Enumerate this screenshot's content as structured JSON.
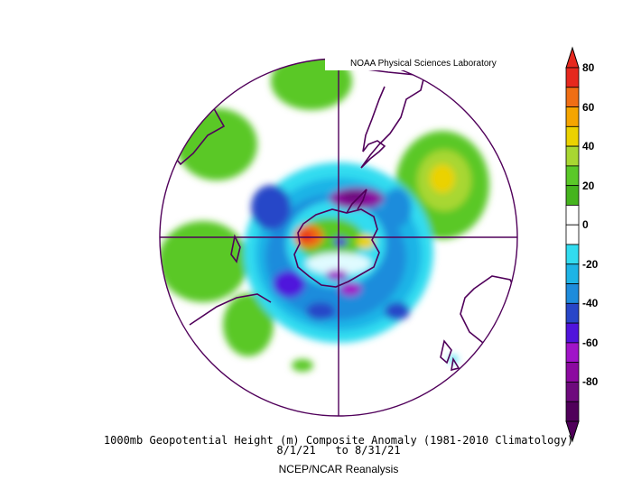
{
  "credit": "NOAA Physical Sciences Laboratory",
  "caption": {
    "title": "1000mb Geopotential Height (m) Composite Anomaly (1981-2010 Climatology)",
    "dates": "8/1/21   to 8/31/21",
    "source": "NCEP/NCAR Reanalysis"
  },
  "colorbar": {
    "labels": [
      "80",
      "60",
      "40",
      "20",
      "0",
      "-20",
      "-40",
      "-60",
      "-80"
    ],
    "colors": [
      "#e6281e",
      "#f06e14",
      "#f5a500",
      "#ebd200",
      "#a8d732",
      "#5ac828",
      "#45b41e",
      "#ffffff",
      "#ffffff",
      "#32dcf0",
      "#1eb4e6",
      "#1e8cdc",
      "#2846c8",
      "#5014dc",
      "#a014c8",
      "#8c0aa0",
      "#6e0a7d",
      "#50005a"
    ]
  },
  "map": {
    "projection": "south-polar-stereographic",
    "land_color": "#50005a",
    "field_colors": {
      "light_green": "#5ac828",
      "yellow_green": "#a8d732",
      "yellow": "#ebd200",
      "orange": "#f06e14",
      "red": "#e6281e",
      "cyan": "#32dcf0",
      "sky": "#1eb4e6",
      "blue": "#1e8cdc",
      "dark_blue": "#2846c8",
      "violet": "#5014dc",
      "magenta": "#a014c8",
      "purple": "#8c0aa0"
    }
  }
}
